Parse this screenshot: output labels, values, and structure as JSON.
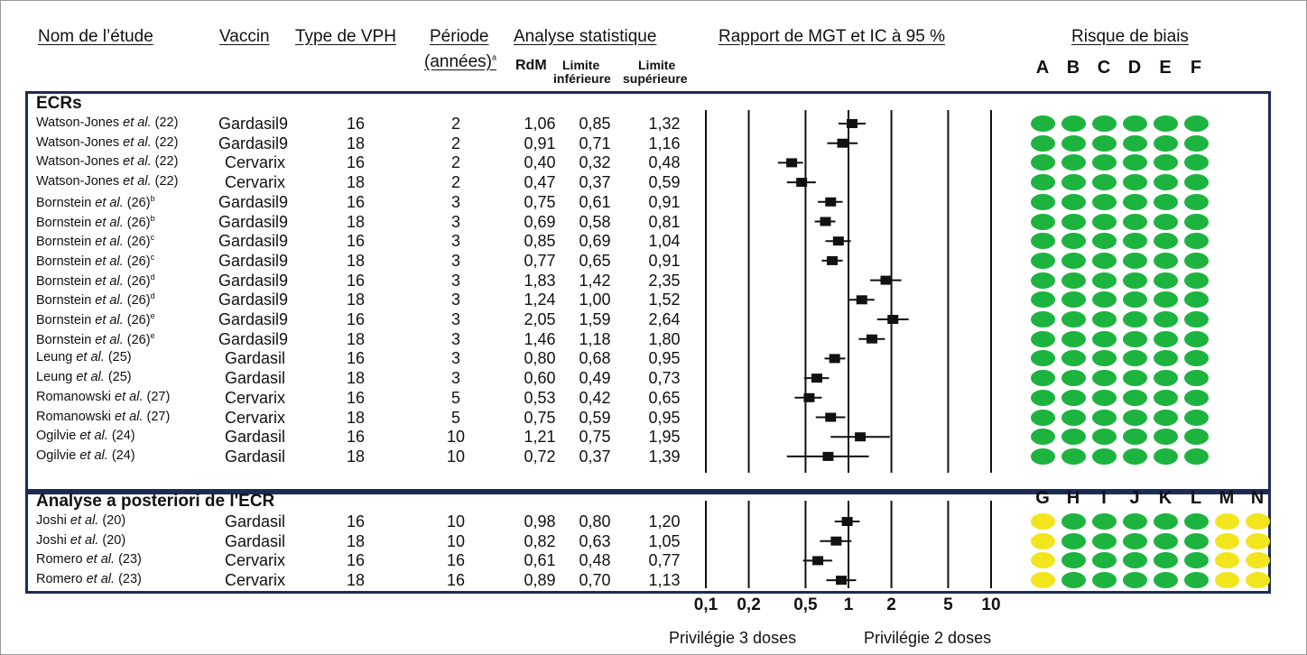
{
  "headers": {
    "study": "Nom de l’étude",
    "vaccine": "Vaccin",
    "hpv": "Type de VPH",
    "period1": "Période",
    "period2": "(années)",
    "period_sup": "a",
    "stats": "Analyse statistique",
    "rr": "RdM",
    "lower1": "Limite",
    "lower2": "inférieure",
    "upper1": "Limite",
    "upper2": "supérieure",
    "ratio": "Rapport de MGT et IC à 95 %",
    "bias": "Risque de biais"
  },
  "section_rct": "ECRs",
  "section_posthoc": "Analyse a posteriori de l'ECR",
  "rob_letters_rct": [
    "A",
    "B",
    "C",
    "D",
    "E",
    "F"
  ],
  "rob_letters_posthoc": [
    "G",
    "H",
    "I",
    "J",
    "K",
    "L",
    "M",
    "N"
  ],
  "colors": {
    "green": "#1db33f",
    "yellow": "#f2e51e",
    "box": "#1c2c57",
    "marker": "#111111"
  },
  "axis": {
    "tick_labels": [
      "0,1",
      "0,2",
      "0,5",
      "1",
      "2",
      "5",
      "10"
    ],
    "favors_left": "Privilégie 3 doses",
    "favors_right": "Privilégie 2 doses"
  },
  "chart_data": {
    "type": "forest",
    "xscale": "log",
    "xlim": [
      0.1,
      10
    ],
    "xticks": [
      0.1,
      0.2,
      0.5,
      1,
      2,
      5,
      10
    ],
    "rows": [
      {
        "group": "rct",
        "author": "Watson-Jones",
        "etal": "et al.",
        "ref": "(22)",
        "sup": "",
        "vaccine": "Gardasil9",
        "hpv": "16",
        "period": "2",
        "rr": "1,06",
        "lower": "0,85",
        "upper": "1,32",
        "rr_v": 1.06,
        "lo_v": 0.85,
        "up_v": 1.32,
        "rob": [
          "green",
          "green",
          "green",
          "green",
          "green",
          "green"
        ]
      },
      {
        "group": "rct",
        "author": "Watson-Jones",
        "etal": "et al.",
        "ref": "(22)",
        "sup": "",
        "vaccine": "Gardasil9",
        "hpv": "18",
        "period": "2",
        "rr": "0,91",
        "lower": "0,71",
        "upper": "1,16",
        "rr_v": 0.91,
        "lo_v": 0.71,
        "up_v": 1.16,
        "rob": [
          "green",
          "green",
          "green",
          "green",
          "green",
          "green"
        ]
      },
      {
        "group": "rct",
        "author": "Watson-Jones",
        "etal": "et al.",
        "ref": "(22)",
        "sup": "",
        "vaccine": "Cervarix",
        "hpv": "16",
        "period": "2",
        "rr": "0,40",
        "lower": "0,32",
        "upper": "0,48",
        "rr_v": 0.4,
        "lo_v": 0.32,
        "up_v": 0.48,
        "rob": [
          "green",
          "green",
          "green",
          "green",
          "green",
          "green"
        ]
      },
      {
        "group": "rct",
        "author": "Watson-Jones",
        "etal": "et al.",
        "ref": "(22)",
        "sup": "",
        "vaccine": "Cervarix",
        "hpv": "18",
        "period": "2",
        "rr": "0,47",
        "lower": "0,37",
        "upper": "0,59",
        "rr_v": 0.47,
        "lo_v": 0.37,
        "up_v": 0.59,
        "rob": [
          "green",
          "green",
          "green",
          "green",
          "green",
          "green"
        ]
      },
      {
        "group": "rct",
        "author": "Bornstein",
        "etal": "et al.",
        "ref": "(26)",
        "sup": "b",
        "vaccine": "Gardasil9",
        "hpv": "16",
        "period": "3",
        "rr": "0,75",
        "lower": "0,61",
        "upper": "0,91",
        "rr_v": 0.75,
        "lo_v": 0.61,
        "up_v": 0.91,
        "rob": [
          "green",
          "green",
          "green",
          "green",
          "green",
          "green"
        ]
      },
      {
        "group": "rct",
        "author": "Bornstein",
        "etal": "et al.",
        "ref": "(26)",
        "sup": "b",
        "vaccine": "Gardasil9",
        "hpv": "18",
        "period": "3",
        "rr": "0,69",
        "lower": "0,58",
        "upper": "0,81",
        "rr_v": 0.69,
        "lo_v": 0.58,
        "up_v": 0.81,
        "rob": [
          "green",
          "green",
          "green",
          "green",
          "green",
          "green"
        ]
      },
      {
        "group": "rct",
        "author": "Bornstein",
        "etal": "et al.",
        "ref": "(26)",
        "sup": "c",
        "vaccine": "Gardasil9",
        "hpv": "16",
        "period": "3",
        "rr": "0,85",
        "lower": "0,69",
        "upper": "1,04",
        "rr_v": 0.85,
        "lo_v": 0.69,
        "up_v": 1.04,
        "rob": [
          "green",
          "green",
          "green",
          "green",
          "green",
          "green"
        ]
      },
      {
        "group": "rct",
        "author": "Bornstein",
        "etal": "et al.",
        "ref": "(26)",
        "sup": "c",
        "vaccine": "Gardasil9",
        "hpv": "18",
        "period": "3",
        "rr": "0,77",
        "lower": "0,65",
        "upper": "0,91",
        "rr_v": 0.77,
        "lo_v": 0.65,
        "up_v": 0.91,
        "rob": [
          "green",
          "green",
          "green",
          "green",
          "green",
          "green"
        ]
      },
      {
        "group": "rct",
        "author": "Bornstein",
        "etal": "et al.",
        "ref": "(26)",
        "sup": "d",
        "vaccine": "Gardasil9",
        "hpv": "16",
        "period": "3",
        "rr": "1,83",
        "lower": "1,42",
        "upper": "2,35",
        "rr_v": 1.83,
        "lo_v": 1.42,
        "up_v": 2.35,
        "rob": [
          "green",
          "green",
          "green",
          "green",
          "green",
          "green"
        ]
      },
      {
        "group": "rct",
        "author": "Bornstein",
        "etal": "et al.",
        "ref": "(26)",
        "sup": "d",
        "vaccine": "Gardasil9",
        "hpv": "18",
        "period": "3",
        "rr": "1,24",
        "lower": "1,00",
        "upper": "1,52",
        "rr_v": 1.24,
        "lo_v": 1.0,
        "up_v": 1.52,
        "rob": [
          "green",
          "green",
          "green",
          "green",
          "green",
          "green"
        ]
      },
      {
        "group": "rct",
        "author": "Bornstein",
        "etal": "et al.",
        "ref": "(26)",
        "sup": "e",
        "vaccine": "Gardasil9",
        "hpv": "16",
        "period": "3",
        "rr": "2,05",
        "lower": "1,59",
        "upper": "2,64",
        "rr_v": 2.05,
        "lo_v": 1.59,
        "up_v": 2.64,
        "rob": [
          "green",
          "green",
          "green",
          "green",
          "green",
          "green"
        ]
      },
      {
        "group": "rct",
        "author": "Bornstein",
        "etal": "et al.",
        "ref": "(26)",
        "sup": "e",
        "vaccine": "Gardasil9",
        "hpv": "18",
        "period": "3",
        "rr": "1,46",
        "lower": "1,18",
        "upper": "1,80",
        "rr_v": 1.46,
        "lo_v": 1.18,
        "up_v": 1.8,
        "rob": [
          "green",
          "green",
          "green",
          "green",
          "green",
          "green"
        ]
      },
      {
        "group": "rct",
        "author": "Leung",
        "etal": "et al.",
        "ref": "(25)",
        "sup": "",
        "vaccine": "Gardasil",
        "hpv": "16",
        "period": "3",
        "rr": "0,80",
        "lower": "0,68",
        "upper": "0,95",
        "rr_v": 0.8,
        "lo_v": 0.68,
        "up_v": 0.95,
        "rob": [
          "green",
          "green",
          "green",
          "green",
          "green",
          "green"
        ]
      },
      {
        "group": "rct",
        "author": "Leung",
        "etal": "et al.",
        "ref": "(25)",
        "sup": "",
        "vaccine": "Gardasil",
        "hpv": "18",
        "period": "3",
        "rr": "0,60",
        "lower": "0,49",
        "upper": "0,73",
        "rr_v": 0.6,
        "lo_v": 0.49,
        "up_v": 0.73,
        "rob": [
          "green",
          "green",
          "green",
          "green",
          "green",
          "green"
        ]
      },
      {
        "group": "rct",
        "author": "Romanowski",
        "etal": "et al.",
        "ref": "(27)",
        "sup": "",
        "vaccine": "Cervarix",
        "hpv": "16",
        "period": "5",
        "rr": "0,53",
        "lower": "0,42",
        "upper": "0,65",
        "rr_v": 0.53,
        "lo_v": 0.42,
        "up_v": 0.65,
        "rob": [
          "green",
          "green",
          "green",
          "green",
          "green",
          "green"
        ]
      },
      {
        "group": "rct",
        "author": "Romanowski",
        "etal": "et al.",
        "ref": "(27)",
        "sup": "",
        "vaccine": "Cervarix",
        "hpv": "18",
        "period": "5",
        "rr": "0,75",
        "lower": "0,59",
        "upper": "0,95",
        "rr_v": 0.75,
        "lo_v": 0.59,
        "up_v": 0.95,
        "rob": [
          "green",
          "green",
          "green",
          "green",
          "green",
          "green"
        ]
      },
      {
        "group": "rct",
        "author": "Ogilvie",
        "etal": "et al.",
        "ref": "(24)",
        "sup": "",
        "vaccine": "Gardasil",
        "hpv": "16",
        "period": "10",
        "rr": "1,21",
        "lower": "0,75",
        "upper": "1,95",
        "rr_v": 1.21,
        "lo_v": 0.75,
        "up_v": 1.95,
        "rob": [
          "green",
          "green",
          "green",
          "green",
          "green",
          "green"
        ]
      },
      {
        "group": "rct",
        "author": "Ogilvie",
        "etal": "et al.",
        "ref": "(24)",
        "sup": "",
        "vaccine": "Gardasil",
        "hpv": "18",
        "period": "10",
        "rr": "0,72",
        "lower": "0,37",
        "upper": "1,39",
        "rr_v": 0.72,
        "lo_v": 0.37,
        "up_v": 1.39,
        "rob": [
          "green",
          "green",
          "green",
          "green",
          "green",
          "green"
        ]
      },
      {
        "group": "posthoc",
        "author": "Joshi",
        "etal": "et al.",
        "ref": "(20)",
        "sup": "",
        "vaccine": "Gardasil",
        "hpv": "16",
        "period": "10",
        "rr": "0,98",
        "lower": "0,80",
        "upper": "1,20",
        "rr_v": 0.98,
        "lo_v": 0.8,
        "up_v": 1.2,
        "rob": [
          "yellow",
          "green",
          "green",
          "green",
          "green",
          "green",
          "yellow",
          "yellow"
        ]
      },
      {
        "group": "posthoc",
        "author": "Joshi",
        "etal": "et al.",
        "ref": "(20)",
        "sup": "",
        "vaccine": "Gardasil",
        "hpv": "18",
        "period": "10",
        "rr": "0,82",
        "lower": "0,63",
        "upper": "1,05",
        "rr_v": 0.82,
        "lo_v": 0.63,
        "up_v": 1.05,
        "rob": [
          "yellow",
          "green",
          "green",
          "green",
          "green",
          "green",
          "yellow",
          "yellow"
        ]
      },
      {
        "group": "posthoc",
        "author": "Romero",
        "etal": "et al.",
        "ref": "(23)",
        "sup": "",
        "vaccine": "Cervarix",
        "hpv": "16",
        "period": "16",
        "rr": "0,61",
        "lower": "0,48",
        "upper": "0,77",
        "rr_v": 0.61,
        "lo_v": 0.48,
        "up_v": 0.77,
        "rob": [
          "yellow",
          "green",
          "green",
          "green",
          "green",
          "green",
          "yellow",
          "yellow"
        ]
      },
      {
        "group": "posthoc",
        "author": "Romero",
        "etal": "et al.",
        "ref": "(23)",
        "sup": "",
        "vaccine": "Cervarix",
        "hpv": "18",
        "period": "16",
        "rr": "0,89",
        "lower": "0,70",
        "upper": "1,13",
        "rr_v": 0.89,
        "lo_v": 0.7,
        "up_v": 1.13,
        "rob": [
          "yellow",
          "green",
          "green",
          "green",
          "green",
          "green",
          "yellow",
          "yellow"
        ]
      }
    ]
  }
}
